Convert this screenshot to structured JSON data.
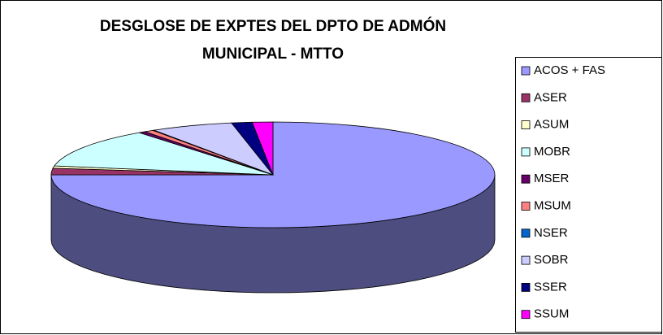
{
  "chart_data": {
    "type": "pie3d",
    "title_lines": [
      "DESGLOSE DE EXPTES DEL DPTO DE ADMÓN",
      "MUNICIPAL - MTTO"
    ],
    "categories": [
      "ACOS + FAS",
      "ASER",
      "ASUM",
      "MOBR",
      "MSER",
      "MSUM",
      "NSER",
      "SOBR",
      "SSER",
      "SSUM"
    ],
    "values": [
      75,
      2,
      0.7,
      12,
      0.5,
      0.7,
      0.1,
      6,
      1.5,
      1.5
    ],
    "colors": [
      "#9999ff",
      "#993366",
      "#ffffcc",
      "#ccffff",
      "#660066",
      "#ff8080",
      "#0066cc",
      "#ccccff",
      "#000080",
      "#ff00ff"
    ],
    "legend": "right"
  }
}
